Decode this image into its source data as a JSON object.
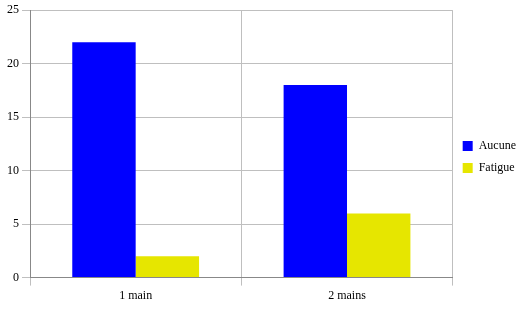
{
  "chart_data": {
    "type": "bar",
    "categories": [
      "1 main",
      "2 mains"
    ],
    "series": [
      {
        "name": "Aucune",
        "color": "#0000ff",
        "values": [
          22,
          18
        ]
      },
      {
        "name": "Fatigue",
        "color": "#e6e600",
        "values": [
          2,
          6
        ]
      }
    ],
    "ylim": [
      0,
      25
    ],
    "yticks": [
      0,
      5,
      10,
      15,
      20,
      25
    ],
    "grid": true,
    "legend": "right"
  }
}
